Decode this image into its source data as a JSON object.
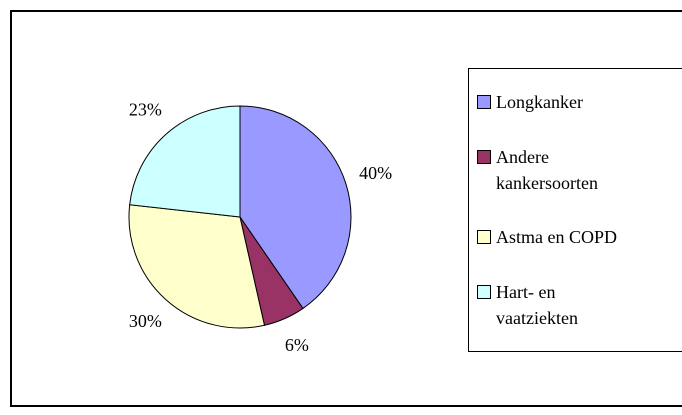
{
  "chart_data": {
    "type": "pie",
    "categories": [
      "Longkanker",
      "Andere kankersoorten",
      "Astma en COPD",
      "Hart- en vaatziekten"
    ],
    "values": [
      40,
      6,
      30,
      23
    ],
    "value_labels": [
      "40%",
      "6%",
      "30%",
      "23%"
    ],
    "colors": [
      "#9999ff",
      "#993366",
      "#ffffcc",
      "#ccffff"
    ],
    "legend": "right"
  }
}
